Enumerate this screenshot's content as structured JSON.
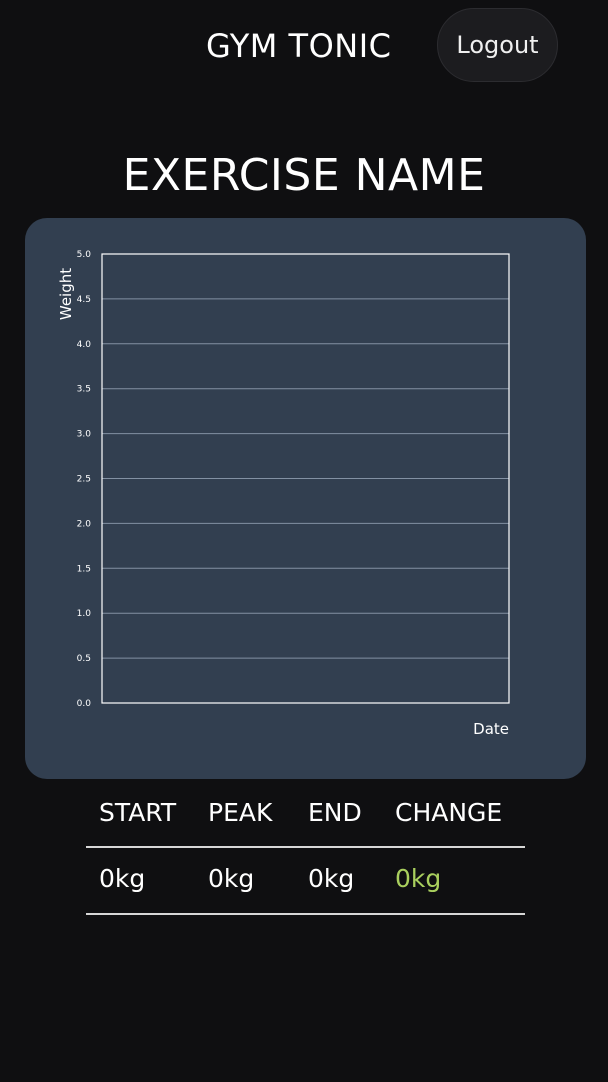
{
  "header": {
    "brand": "GYM TONIC",
    "logout_label": "Logout"
  },
  "page": {
    "title": "EXERCISE NAME"
  },
  "chart_data": {
    "type": "line",
    "title": "",
    "xlabel": "Date",
    "ylabel": "Weight",
    "ylim": [
      0,
      5
    ],
    "yticks": [
      "0.0",
      "0.5",
      "1.0",
      "1.5",
      "2.0",
      "2.5",
      "3.0",
      "3.5",
      "4.0",
      "4.5",
      "5.0"
    ],
    "x": [],
    "series": [],
    "grid": "horizontal"
  },
  "stats": {
    "headers": [
      "START",
      "PEAK",
      "END",
      "CHANGE"
    ],
    "values": [
      "0kg",
      "0kg",
      "0kg",
      "0kg"
    ]
  },
  "colors": {
    "background": "#0f0f11",
    "card": "#323f50",
    "change_positive": "#a9cf5e"
  }
}
